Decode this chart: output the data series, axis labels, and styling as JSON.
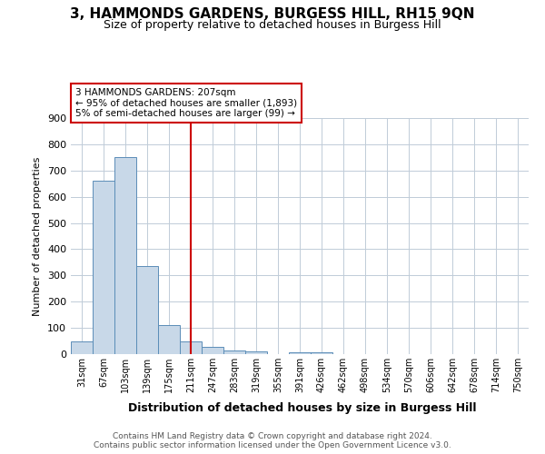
{
  "title": "3, HAMMONDS GARDENS, BURGESS HILL, RH15 9QN",
  "subtitle": "Size of property relative to detached houses in Burgess Hill",
  "xlabel": "Distribution of detached houses by size in Burgess Hill",
  "ylabel": "Number of detached properties",
  "bar_labels": [
    "31sqm",
    "67sqm",
    "103sqm",
    "139sqm",
    "175sqm",
    "211sqm",
    "247sqm",
    "283sqm",
    "319sqm",
    "355sqm",
    "391sqm",
    "426sqm",
    "462sqm",
    "498sqm",
    "534sqm",
    "570sqm",
    "606sqm",
    "642sqm",
    "678sqm",
    "714sqm",
    "750sqm"
  ],
  "bar_heights": [
    50,
    660,
    750,
    335,
    110,
    50,
    27,
    14,
    9,
    0,
    8,
    8,
    0,
    0,
    0,
    0,
    0,
    0,
    0,
    0,
    0
  ],
  "bar_color": "#c8d8e8",
  "bar_edge_color": "#5b8db8",
  "vline_x_index": 5,
  "vline_color": "#cc0000",
  "annotation_title": "3 HAMMONDS GARDENS: 207sqm",
  "annotation_line1": "← 95% of detached houses are smaller (1,893)",
  "annotation_line2": "5% of semi-detached houses are larger (99) →",
  "annotation_box_color": "#ffffff",
  "annotation_box_edge": "#cc0000",
  "ylim": [
    0,
    900
  ],
  "yticks": [
    0,
    100,
    200,
    300,
    400,
    500,
    600,
    700,
    800,
    900
  ],
  "footer1": "Contains HM Land Registry data © Crown copyright and database right 2024.",
  "footer2": "Contains public sector information licensed under the Open Government Licence v3.0.",
  "bg_color": "#ffffff",
  "grid_color": "#c0ccd8",
  "title_fontsize": 11,
  "subtitle_fontsize": 9
}
